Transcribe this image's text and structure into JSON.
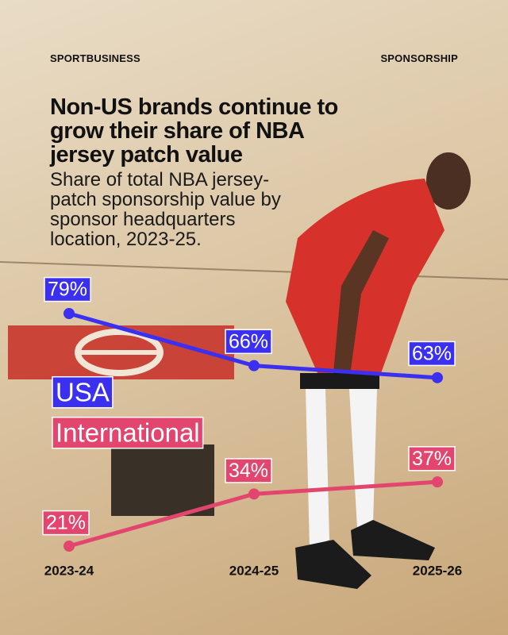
{
  "header": {
    "brand": "SPORTBUSINESS",
    "section": "SPONSORSHIP"
  },
  "chart_data": {
    "type": "line",
    "title": "Non-US brands continue to grow their share of NBA jersey patch value",
    "subtitle": "Share of total NBA jersey-patch sponsorship value by sponsor headquarters location, 2023-25.",
    "categories": [
      "2023-24",
      "2024-25",
      "2025-26"
    ],
    "series": [
      {
        "name": "USA",
        "color": "#3b2ff0",
        "values": [
          79,
          66,
          63
        ],
        "value_labels": [
          "79%",
          "66%",
          "63%"
        ]
      },
      {
        "name": "International",
        "color": "#e2456d",
        "values": [
          21,
          34,
          37
        ],
        "value_labels": [
          "21%",
          "34%",
          "37%"
        ]
      }
    ]
  }
}
